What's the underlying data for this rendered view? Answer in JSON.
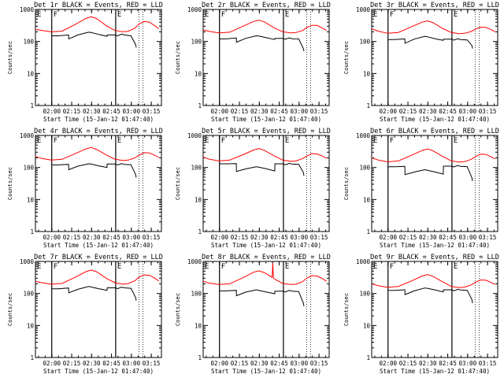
{
  "figure": {
    "ylabel": "Counts/sec",
    "xlabel": "Start Time (15-Jan-12 01:47:40)",
    "x_tick_labels": [
      "02:00",
      "02:15",
      "02:30",
      "02:45",
      "03:00",
      "03:15"
    ],
    "y_tick_labels": [
      "1",
      "10",
      "100",
      "1000"
    ],
    "colors": {
      "events": "#000000",
      "lld": "#ff0000",
      "axes": "#000000"
    },
    "flag_labels": [
      "E",
      "F",
      "E"
    ]
  },
  "chart_data": [
    {
      "type": "line",
      "title": "Det 1r BLACK = Events, RED = LLD",
      "xlabel": "Start Time (15-Jan-12 01:47:40)",
      "ylabel": "Counts/sec",
      "x_unit": "minutes after 01:47:40",
      "xlim": [
        0,
        95
      ],
      "ylim": [
        1,
        1000
      ],
      "yscale": "log",
      "flag_times": [
        12.3,
        60.5,
        78
      ],
      "series": [
        {
          "name": "Events",
          "color": "#000000",
          "x": [
            12.5,
            17,
            25,
            25.1,
            32,
            40,
            42,
            48,
            54,
            54.1,
            60,
            62,
            65,
            67,
            72,
            75.5,
            76
          ],
          "y": [
            150,
            150,
            160,
            120,
            160,
            195,
            190,
            165,
            145,
            160,
            160,
            150,
            170,
            160,
            150,
            80,
            65
          ]
        },
        {
          "name": "LLD",
          "color": "#ff0000",
          "x": [
            0,
            5,
            12,
            20,
            30,
            38,
            42,
            46,
            54,
            60,
            66,
            70,
            75,
            78,
            82,
            86,
            90,
            93
          ],
          "y": [
            240,
            220,
            200,
            210,
            340,
            520,
            590,
            520,
            300,
            220,
            200,
            210,
            260,
            350,
            420,
            400,
            310,
            250
          ]
        }
      ]
    },
    {
      "type": "line",
      "title": "Det 2r BLACK = Events, RED = LLD",
      "xlabel": "Start Time (15-Jan-12 01:47:40)",
      "ylabel": "Counts/sec",
      "x_unit": "minutes after 01:47:40",
      "xlim": [
        0,
        95
      ],
      "ylim": [
        1,
        1000
      ],
      "yscale": "log",
      "flag_times": [
        12.3,
        60.5,
        78
      ],
      "series": [
        {
          "name": "Events",
          "color": "#000000",
          "x": [
            12.5,
            17,
            25,
            25.1,
            32,
            40,
            42,
            48,
            54,
            54.1,
            60,
            62,
            65,
            67,
            72,
            75.5,
            76
          ],
          "y": [
            120,
            120,
            128,
            95,
            125,
            150,
            148,
            130,
            115,
            125,
            125,
            118,
            130,
            122,
            120,
            60,
            50
          ]
        },
        {
          "name": "LLD",
          "color": "#ff0000",
          "x": [
            0,
            5,
            12,
            20,
            30,
            38,
            42,
            46,
            54,
            60,
            66,
            70,
            75,
            78,
            82,
            86,
            90,
            93
          ],
          "y": [
            230,
            205,
            185,
            195,
            300,
            420,
            460,
            410,
            260,
            200,
            185,
            190,
            220,
            270,
            320,
            315,
            260,
            220
          ]
        }
      ]
    },
    {
      "type": "line",
      "title": "Det 3r BLACK = Events, RED = LLD",
      "xlabel": "Start Time (15-Jan-12 01:47:40)",
      "ylabel": "Counts/sec",
      "x_unit": "minutes after 01:47:40",
      "xlim": [
        0,
        95
      ],
      "ylim": [
        1,
        1000
      ],
      "yscale": "log",
      "flag_times": [
        12.3,
        60.5,
        78
      ],
      "series": [
        {
          "name": "Events",
          "color": "#000000",
          "x": [
            12.5,
            17,
            25,
            25.1,
            32,
            40,
            42,
            48,
            54,
            54.1,
            60,
            62,
            65,
            67,
            72,
            75.5,
            76
          ],
          "y": [
            115,
            115,
            120,
            88,
            118,
            145,
            140,
            122,
            108,
            118,
            118,
            110,
            122,
            115,
            112,
            75,
            60
          ]
        },
        {
          "name": "LLD",
          "color": "#ff0000",
          "x": [
            0,
            5,
            12,
            20,
            30,
            38,
            42,
            46,
            54,
            60,
            66,
            70,
            75,
            78,
            82,
            86,
            90,
            93
          ],
          "y": [
            250,
            210,
            180,
            190,
            290,
            400,
            440,
            390,
            250,
            190,
            175,
            180,
            205,
            240,
            280,
            275,
            235,
            200
          ]
        }
      ]
    },
    {
      "type": "line",
      "title": "Det 4r BLACK = Events, RED = LLD",
      "xlabel": "Start Time (15-Jan-12 01:47:40)",
      "ylabel": "Counts/sec",
      "x_unit": "minutes after 01:47:40",
      "xlim": [
        0,
        95
      ],
      "ylim": [
        1,
        1000
      ],
      "yscale": "log",
      "flag_times": [
        12.3,
        60.5,
        78
      ],
      "series": [
        {
          "name": "Events",
          "color": "#000000",
          "x": [
            12.5,
            17,
            25,
            25.1,
            32,
            40,
            42,
            48,
            54,
            54.1,
            60,
            62,
            65,
            67,
            72,
            75.5,
            76
          ],
          "y": [
            120,
            120,
            125,
            85,
            110,
            130,
            128,
            112,
            100,
            128,
            128,
            120,
            132,
            125,
            122,
            60,
            48
          ]
        },
        {
          "name": "LLD",
          "color": "#ff0000",
          "x": [
            0,
            5,
            12,
            20,
            30,
            38,
            42,
            46,
            54,
            60,
            66,
            70,
            75,
            78,
            82,
            86,
            90,
            93
          ],
          "y": [
            220,
            190,
            170,
            180,
            270,
            380,
            420,
            370,
            240,
            180,
            165,
            170,
            200,
            240,
            290,
            285,
            240,
            205
          ]
        }
      ]
    },
    {
      "type": "line",
      "title": "Det 5r BLACK = Events, RED = LLD",
      "xlabel": "Start Time (15-Jan-12 01:47:40)",
      "ylabel": "Counts/sec",
      "x_unit": "minutes after 01:47:40",
      "xlim": [
        0,
        95
      ],
      "ylim": [
        1,
        1000
      ],
      "yscale": "log",
      "flag_times": [
        12.3,
        60.5,
        78
      ],
      "series": [
        {
          "name": "Events",
          "color": "#000000",
          "x": [
            12.5,
            17,
            25,
            25.1,
            32,
            40,
            42,
            48,
            54,
            54.1,
            60,
            62,
            65,
            67,
            72,
            75.5,
            76
          ],
          "y": [
            130,
            130,
            132,
            75,
            90,
            105,
            102,
            90,
            78,
            130,
            130,
            122,
            135,
            128,
            125,
            70,
            55
          ]
        },
        {
          "name": "LLD",
          "color": "#ff0000",
          "x": [
            0,
            5,
            12,
            20,
            30,
            38,
            42,
            46,
            54,
            60,
            66,
            70,
            75,
            78,
            82,
            86,
            90,
            93
          ],
          "y": [
            210,
            180,
            160,
            170,
            250,
            350,
            390,
            345,
            225,
            170,
            155,
            160,
            190,
            225,
            270,
            265,
            225,
            195
          ]
        }
      ]
    },
    {
      "type": "line",
      "title": "Det 6r BLACK = Events, RED = LLD",
      "xlabel": "Start Time (15-Jan-12 01:47:40)",
      "ylabel": "Counts/sec",
      "x_unit": "minutes after 01:47:40",
      "xlim": [
        0,
        95
      ],
      "ylim": [
        1,
        1000
      ],
      "yscale": "log",
      "flag_times": [
        12.3,
        60.5,
        78
      ],
      "series": [
        {
          "name": "Events",
          "color": "#000000",
          "x": [
            12.5,
            17,
            25,
            25.1,
            32,
            40,
            42,
            48,
            54,
            54.1,
            60,
            62,
            65,
            67,
            72,
            75.5,
            76
          ],
          "y": [
            105,
            105,
            108,
            60,
            72,
            85,
            82,
            72,
            62,
            110,
            110,
            104,
            115,
            108,
            106,
            48,
            38
          ]
        },
        {
          "name": "LLD",
          "color": "#ff0000",
          "x": [
            0,
            5,
            12,
            20,
            30,
            38,
            42,
            46,
            54,
            60,
            66,
            70,
            75,
            78,
            82,
            86,
            90,
            93
          ],
          "y": [
            200,
            170,
            150,
            160,
            240,
            340,
            380,
            335,
            215,
            160,
            148,
            152,
            180,
            215,
            260,
            255,
            215,
            185
          ]
        }
      ]
    },
    {
      "type": "line",
      "title": "Det 7r BLACK = Events, RED = LLD",
      "xlabel": "Start Time (15-Jan-12 01:47:40)",
      "ylabel": "Counts/sec",
      "x_unit": "minutes after 01:47:40",
      "xlim": [
        0,
        95
      ],
      "ylim": [
        1,
        1000
      ],
      "yscale": "log",
      "flag_times": [
        12.3,
        60.5,
        78
      ],
      "series": [
        {
          "name": "Events",
          "color": "#000000",
          "x": [
            12.5,
            17,
            25,
            25.1,
            32,
            40,
            42,
            48,
            54,
            54.1,
            60,
            62,
            65,
            67,
            72,
            75.5,
            76
          ],
          "y": [
            140,
            140,
            148,
            105,
            135,
            165,
            160,
            140,
            125,
            150,
            150,
            142,
            158,
            150,
            145,
            75,
            60
          ]
        },
        {
          "name": "LLD",
          "color": "#ff0000",
          "x": [
            0,
            5,
            12,
            20,
            30,
            38,
            42,
            46,
            54,
            60,
            66,
            70,
            75,
            78,
            82,
            86,
            90,
            93
          ],
          "y": [
            240,
            215,
            195,
            205,
            320,
            480,
            540,
            480,
            290,
            215,
            195,
            205,
            250,
            320,
            380,
            370,
            300,
            245
          ]
        }
      ]
    },
    {
      "type": "line",
      "title": "Det 8r BLACK = Events, RED = LLD",
      "xlabel": "Start Time (15-Jan-12 01:47:40)",
      "ylabel": "Counts/sec",
      "x_unit": "minutes after 01:47:40",
      "xlim": [
        0,
        95
      ],
      "ylim": [
        1,
        1000
      ],
      "yscale": "log",
      "flag_times": [
        12.3,
        60.5,
        78
      ],
      "series": [
        {
          "name": "Events",
          "color": "#000000",
          "x": [
            12.5,
            17,
            25,
            25.1,
            32,
            40,
            42,
            48,
            54,
            54.1,
            60,
            62,
            65,
            67,
            72,
            75.5,
            76
          ],
          "y": [
            120,
            120,
            125,
            85,
            110,
            130,
            125,
            110,
            98,
            118,
            118,
            112,
            125,
            118,
            115,
            50,
            40
          ]
        },
        {
          "name": "LLD",
          "color": "#ff0000",
          "x": [
            0,
            5,
            12,
            20,
            30,
            38,
            42,
            46,
            52,
            52.5,
            53,
            54,
            60,
            66,
            70,
            75,
            78,
            82,
            86,
            90,
            93
          ],
          "y": [
            240,
            210,
            190,
            200,
            310,
            460,
            510,
            450,
            320,
            900,
            300,
            280,
            205,
            190,
            195,
            235,
            300,
            360,
            350,
            290,
            240
          ]
        }
      ]
    },
    {
      "type": "line",
      "title": "Det 9r BLACK = Events, RED = LLD",
      "xlabel": "Start Time (15-Jan-12 01:47:40)",
      "ylabel": "Counts/sec",
      "x_unit": "minutes after 01:47:40",
      "xlim": [
        0,
        95
      ],
      "ylim": [
        1,
        1000
      ],
      "yscale": "log",
      "flag_times": [
        12.3,
        60.5,
        78
      ],
      "series": [
        {
          "name": "Events",
          "color": "#000000",
          "x": [
            12.5,
            17,
            25,
            25.1,
            32,
            40,
            42,
            48,
            54,
            54.1,
            60,
            62,
            65,
            67,
            72,
            75.5,
            76
          ],
          "y": [
            125,
            125,
            130,
            92,
            120,
            148,
            145,
            128,
            112,
            130,
            130,
            122,
            135,
            128,
            125,
            65,
            50
          ]
        },
        {
          "name": "LLD",
          "color": "#ff0000",
          "x": [
            0,
            5,
            12,
            20,
            30,
            38,
            42,
            46,
            54,
            60,
            66,
            70,
            75,
            78,
            82,
            86,
            90,
            93
          ],
          "y": [
            200,
            175,
            155,
            165,
            245,
            350,
            390,
            345,
            225,
            165,
            152,
            158,
            185,
            220,
            265,
            260,
            220,
            190
          ]
        }
      ]
    }
  ]
}
